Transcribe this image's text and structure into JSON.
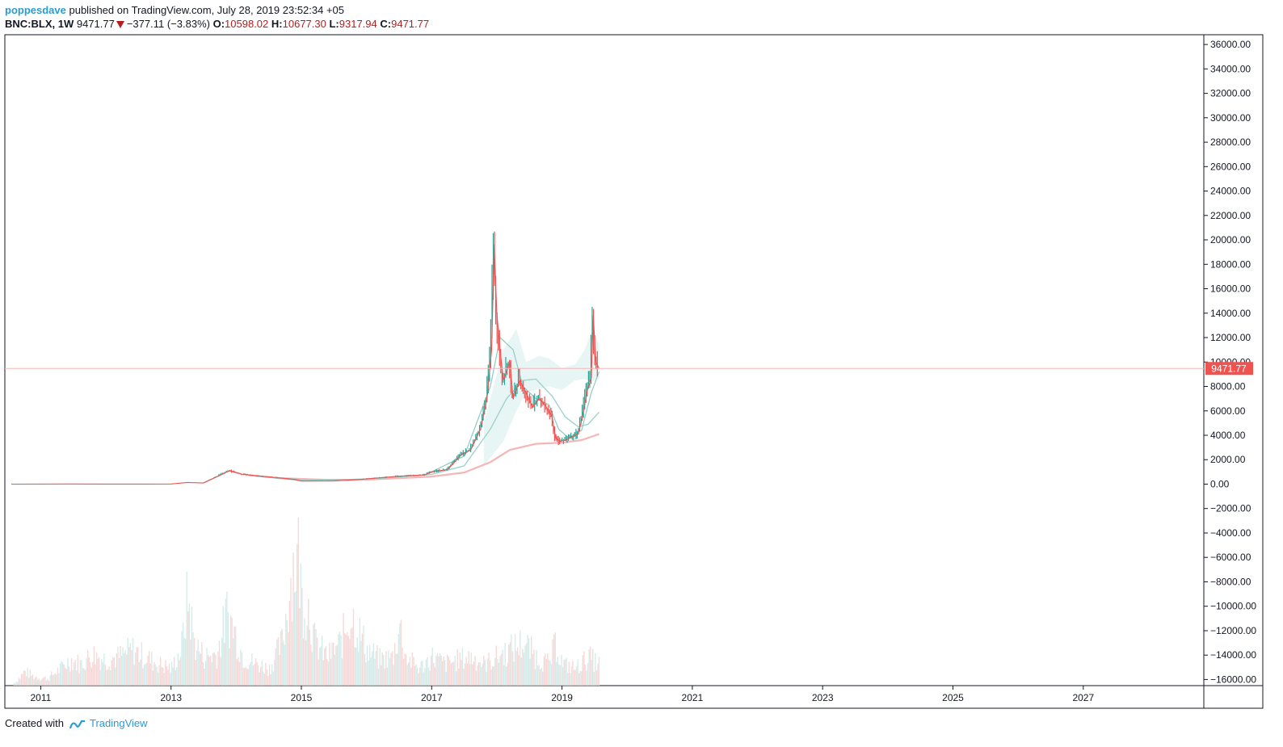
{
  "header": {
    "author": "poppesdave",
    "published_text": "published on TradingView.com, July 28, 2019 23:52:34 +05"
  },
  "ticker": {
    "symbol": "BNC:BLX, 1W",
    "last": "9471.77",
    "change": "−377.11 (−3.83%)",
    "open_label": "O:",
    "open": "10598.02",
    "high_label": "H:",
    "high": "10677.30",
    "low_label": "L:",
    "low": "9317.94",
    "close_label": "C:",
    "close": "9471.77"
  },
  "footer": {
    "created_with": "Created with",
    "brand": "TradingView"
  },
  "colors": {
    "up": "#26a69a",
    "down": "#ef5350",
    "band": "#b2dfdb",
    "ma_slow": "#f4b6b6",
    "price_line": "#f4b6b6",
    "brand": "#2a9bd3"
  },
  "chart_data": {
    "type": "line",
    "y_axis": {
      "min": -16500,
      "max": 36800,
      "ticks": [
        36000,
        34000,
        32000,
        30000,
        28000,
        26000,
        24000,
        22000,
        20000,
        18000,
        16000,
        14000,
        12000,
        10000,
        8000,
        6000,
        4000,
        2000,
        0,
        -2000,
        -4000,
        -6000,
        -8000,
        -10000,
        -12000,
        -14000,
        -16000
      ],
      "tick_labels": [
        "36000.00",
        "34000.00",
        "32000.00",
        "30000.00",
        "28000.00",
        "26000.00",
        "24000.00",
        "22000.00",
        "20000.00",
        "18000.00",
        "16000.00",
        "14000.00",
        "12000.00",
        "10000.00",
        "8000.00",
        "6000.00",
        "4000.00",
        "2000.00",
        "0.00",
        "−2000.00",
        "−4000.00",
        "−6000.00",
        "−8000.00",
        "−10000.00",
        "−12000.00",
        "−14000.00",
        "−16000.00"
      ],
      "position": "right"
    },
    "x_axis": {
      "min": 2010.45,
      "max": 2028.85,
      "ticks": [
        2011,
        2013,
        2015,
        2017,
        2019,
        2021,
        2023,
        2025,
        2027
      ],
      "tick_labels": [
        "2011",
        "2013",
        "2015",
        "2017",
        "2019",
        "2021",
        "2023",
        "2025",
        "2027"
      ]
    },
    "last_price": 9471.77,
    "last_price_label": "9471.77",
    "price": [
      [
        2010.55,
        0.07
      ],
      [
        2011.45,
        15
      ],
      [
        2012.0,
        6
      ],
      [
        2012.5,
        7
      ],
      [
        2013.0,
        13
      ],
      [
        2013.25,
        140
      ],
      [
        2013.5,
        90
      ],
      [
        2013.9,
        1100
      ],
      [
        2014.1,
        800
      ],
      [
        2014.5,
        600
      ],
      [
        2014.9,
        380
      ],
      [
        2015.0,
        250
      ],
      [
        2015.5,
        260
      ],
      [
        2015.9,
        380
      ],
      [
        2016.0,
        430
      ],
      [
        2016.5,
        650
      ],
      [
        2016.9,
        760
      ],
      [
        2017.0,
        1000
      ],
      [
        2017.25,
        1200
      ],
      [
        2017.45,
        2400
      ],
      [
        2017.6,
        2800
      ],
      [
        2017.75,
        4500
      ],
      [
        2017.85,
        7000
      ],
      [
        2017.92,
        11000
      ],
      [
        2017.96,
        19600
      ],
      [
        2018.0,
        14000
      ],
      [
        2018.05,
        11000
      ],
      [
        2018.1,
        8500
      ],
      [
        2018.2,
        10000
      ],
      [
        2018.25,
        7000
      ],
      [
        2018.35,
        8500
      ],
      [
        2018.45,
        7500
      ],
      [
        2018.55,
        6300
      ],
      [
        2018.65,
        7000
      ],
      [
        2018.75,
        6400
      ],
      [
        2018.85,
        5500
      ],
      [
        2018.9,
        3800
      ],
      [
        2018.97,
        3500
      ],
      [
        2019.05,
        3600
      ],
      [
        2019.15,
        3850
      ],
      [
        2019.25,
        4100
      ],
      [
        2019.3,
        5200
      ],
      [
        2019.4,
        7900
      ],
      [
        2019.45,
        8700
      ],
      [
        2019.48,
        13800
      ],
      [
        2019.52,
        10000
      ],
      [
        2019.57,
        9471.77
      ]
    ],
    "ma_fast": [
      [
        2014.2,
        700
      ],
      [
        2015.0,
        300
      ],
      [
        2016.0,
        420
      ],
      [
        2016.9,
        760
      ],
      [
        2017.5,
        2300
      ],
      [
        2017.9,
        8000
      ],
      [
        2018.05,
        12000
      ],
      [
        2018.25,
        11000
      ],
      [
        2018.4,
        8000
      ],
      [
        2018.6,
        7000
      ],
      [
        2018.8,
        6500
      ],
      [
        2018.95,
        4500
      ],
      [
        2019.1,
        3800
      ],
      [
        2019.3,
        4400
      ],
      [
        2019.45,
        7500
      ],
      [
        2019.57,
        9200
      ]
    ],
    "ma_mid": [
      [
        2014.4,
        600
      ],
      [
        2015.0,
        380
      ],
      [
        2016.0,
        390
      ],
      [
        2017.0,
        800
      ],
      [
        2017.5,
        1500
      ],
      [
        2017.9,
        4500
      ],
      [
        2018.15,
        7000
      ],
      [
        2018.4,
        8500
      ],
      [
        2018.6,
        8600
      ],
      [
        2018.85,
        7200
      ],
      [
        2019.05,
        5500
      ],
      [
        2019.25,
        4700
      ],
      [
        2019.4,
        4900
      ],
      [
        2019.57,
        5900
      ]
    ],
    "ma_slow": [
      [
        2014.6,
        500
      ],
      [
        2015.5,
        330
      ],
      [
        2016.0,
        360
      ],
      [
        2016.5,
        480
      ],
      [
        2017.0,
        620
      ],
      [
        2017.5,
        950
      ],
      [
        2017.9,
        1800
      ],
      [
        2018.2,
        2800
      ],
      [
        2018.6,
        3300
      ],
      [
        2019.0,
        3400
      ],
      [
        2019.3,
        3600
      ],
      [
        2019.57,
        4100
      ]
    ],
    "band_upper": [
      [
        2017.8,
        5000
      ],
      [
        2018.1,
        11000
      ],
      [
        2018.3,
        12700
      ],
      [
        2018.45,
        10000
      ],
      [
        2018.65,
        10500
      ],
      [
        2018.8,
        10300
      ],
      [
        2019.0,
        9500
      ],
      [
        2019.2,
        9800
      ],
      [
        2019.35,
        11000
      ],
      [
        2019.45,
        12500
      ],
      [
        2019.57,
        11500
      ]
    ],
    "band_lower": [
      [
        2017.8,
        1500
      ],
      [
        2018.1,
        3500
      ],
      [
        2018.3,
        6000
      ],
      [
        2018.45,
        7500
      ],
      [
        2018.65,
        7800
      ],
      [
        2018.8,
        8000
      ],
      [
        2019.0,
        7700
      ],
      [
        2019.2,
        8500
      ],
      [
        2019.35,
        8600
      ],
      [
        2019.45,
        8400
      ],
      [
        2019.57,
        8600
      ]
    ],
    "volume": {
      "note_scale": "relative 0-1 of pane height",
      "points": [
        [
          2010.6,
          0.02
        ],
        [
          2010.75,
          0.1
        ],
        [
          2010.9,
          0.06
        ],
        [
          2011.1,
          0.05
        ],
        [
          2011.3,
          0.12
        ],
        [
          2011.45,
          0.18
        ],
        [
          2011.6,
          0.15
        ],
        [
          2011.8,
          0.22
        ],
        [
          2012.0,
          0.18
        ],
        [
          2012.2,
          0.2
        ],
        [
          2012.4,
          0.25
        ],
        [
          2012.6,
          0.2
        ],
        [
          2012.8,
          0.15
        ],
        [
          2013.0,
          0.12
        ],
        [
          2013.15,
          0.25
        ],
        [
          2013.25,
          0.62
        ],
        [
          2013.35,
          0.3
        ],
        [
          2013.5,
          0.2
        ],
        [
          2013.7,
          0.22
        ],
        [
          2013.85,
          0.5
        ],
        [
          2013.95,
          0.4
        ],
        [
          2014.1,
          0.2
        ],
        [
          2014.3,
          0.15
        ],
        [
          2014.5,
          0.12
        ],
        [
          2014.7,
          0.3
        ],
        [
          2014.8,
          0.62
        ],
        [
          2014.85,
          0.82
        ],
        [
          2014.95,
          0.9
        ],
        [
          2015.0,
          0.6
        ],
        [
          2015.1,
          0.55
        ],
        [
          2015.2,
          0.3
        ],
        [
          2015.4,
          0.2
        ],
        [
          2015.6,
          0.3
        ],
        [
          2015.75,
          0.5
        ],
        [
          2015.85,
          0.4
        ],
        [
          2016.0,
          0.25
        ],
        [
          2016.2,
          0.18
        ],
        [
          2016.4,
          0.2
        ],
        [
          2016.5,
          0.42
        ],
        [
          2016.6,
          0.2
        ],
        [
          2016.8,
          0.12
        ],
        [
          2017.0,
          0.2
        ],
        [
          2017.2,
          0.15
        ],
        [
          2017.4,
          0.18
        ],
        [
          2017.6,
          0.2
        ],
        [
          2017.8,
          0.15
        ],
        [
          2018.0,
          0.2
        ],
        [
          2018.2,
          0.25
        ],
        [
          2018.4,
          0.3
        ],
        [
          2018.6,
          0.2
        ],
        [
          2018.8,
          0.15
        ],
        [
          2018.9,
          0.3
        ],
        [
          2019.0,
          0.15
        ],
        [
          2019.2,
          0.12
        ],
        [
          2019.4,
          0.2
        ],
        [
          2019.55,
          0.15
        ]
      ]
    }
  }
}
